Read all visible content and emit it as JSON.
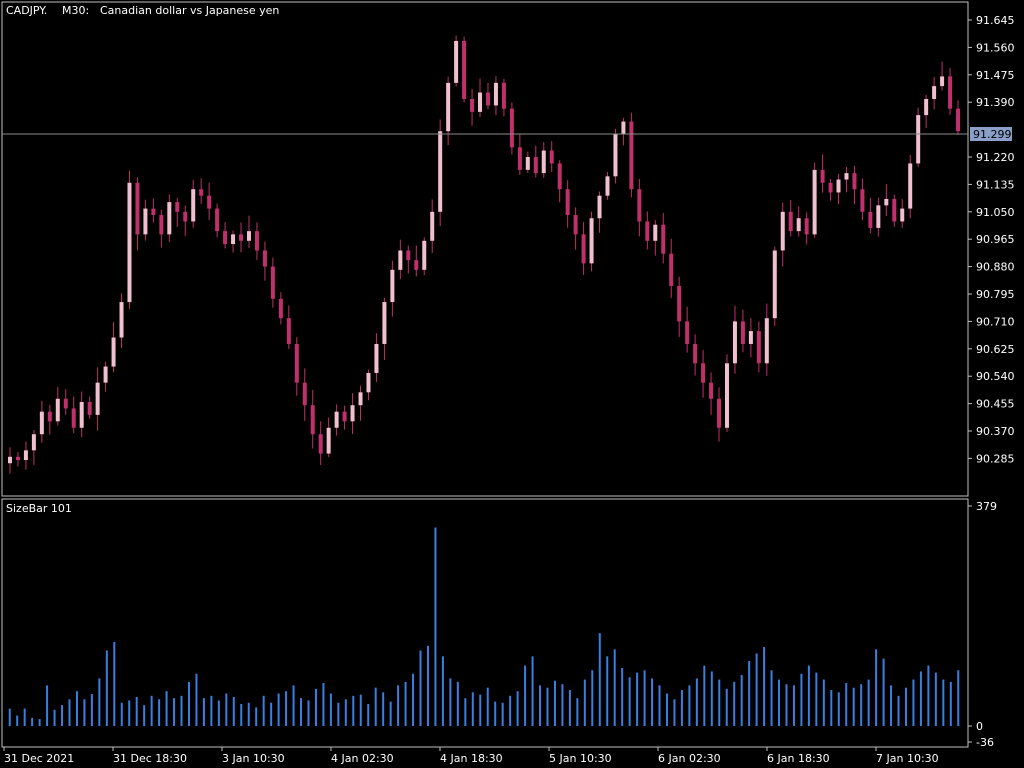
{
  "header": {
    "symbol": "CADJPY.",
    "timeframe": "M30:",
    "description": "Canadian dollar vs Japanese yen"
  },
  "indicator": {
    "label": "SizeBar 101"
  },
  "current_price": "91.299",
  "colors": {
    "background": "#000000",
    "frame": "#c0c0c0",
    "bull_candle": "#f0c0d0",
    "bear_candle": "#c0306a",
    "wick": "#c0306a",
    "volume_bar": "#3a7fe0",
    "price_line": "#8a8a8a",
    "price_tag": "#8aa0c8"
  },
  "chart_data": [
    {
      "type": "candlestick",
      "title": "CADJPY., M30:  Canadian dollar vs Japanese yen",
      "y_ticks": [
        "91.645",
        "91.560",
        "91.475",
        "91.390",
        "91.299",
        "91.220",
        "91.135",
        "91.050",
        "90.965",
        "90.880",
        "90.795",
        "90.710",
        "90.625",
        "90.540",
        "90.455",
        "90.370",
        "90.285"
      ],
      "ylim": [
        90.22,
        91.68
      ],
      "x_ticks": [
        "31 Dec 2021",
        "31 Dec 18:30",
        "3 Jan 10:30",
        "4 Jan 02:30",
        "4 Jan 18:30",
        "5 Jan 10:30",
        "6 Jan 02:30",
        "6 Jan 18:30",
        "7 Jan 10:30"
      ],
      "close_path": [
        90.29,
        90.28,
        90.31,
        90.36,
        90.43,
        90.4,
        90.47,
        90.44,
        90.38,
        90.46,
        90.42,
        90.52,
        90.57,
        90.66,
        90.77,
        91.14,
        90.98,
        91.06,
        91.04,
        90.98,
        91.08,
        91.05,
        91.02,
        91.12,
        91.1,
        91.06,
        90.99,
        90.95,
        90.98,
        90.96,
        90.99,
        90.93,
        90.88,
        90.78,
        90.72,
        90.64,
        90.52,
        90.45,
        90.36,
        90.3,
        90.38,
        90.43,
        90.4,
        90.45,
        90.49,
        90.55,
        90.64,
        90.77,
        90.87,
        90.93,
        90.9,
        90.87,
        90.96,
        91.05,
        91.3,
        91.45,
        91.58,
        91.4,
        91.36,
        91.42,
        91.38,
        91.45,
        91.37,
        91.25,
        91.18,
        91.22,
        91.17,
        91.24,
        91.2,
        91.12,
        91.04,
        90.98,
        90.89,
        91.03,
        91.1,
        91.16,
        91.29,
        91.33,
        91.12,
        91.02,
        90.96,
        91.01,
        90.92,
        90.82,
        90.71,
        90.64,
        90.58,
        90.52,
        90.47,
        90.38,
        90.58,
        90.71,
        90.64,
        90.68,
        90.58,
        90.72,
        90.93,
        91.05,
        90.99,
        91.03,
        90.98,
        91.18,
        91.14,
        91.11,
        91.15,
        91.17,
        91.12,
        91.05,
        91.0,
        91.07,
        91.09,
        91.02,
        91.06,
        91.2,
        91.35,
        91.4,
        91.44,
        91.47,
        91.37,
        91.3
      ],
      "note": "Approximate closing path across ~120 sampled M30 candles"
    },
    {
      "type": "bar",
      "title": "SizeBar 101",
      "y_ticks": [
        "379",
        "0",
        "-36"
      ],
      "ylim": [
        -36,
        379
      ],
      "note": "Per-candle size histogram; values approximate",
      "values": [
        30,
        18,
        30,
        14,
        12,
        70,
        28,
        36,
        46,
        60,
        46,
        55,
        82,
        130,
        145,
        40,
        44,
        50,
        36,
        52,
        46,
        60,
        48,
        52,
        76,
        90,
        48,
        52,
        44,
        56,
        50,
        38,
        40,
        32,
        52,
        40,
        56,
        60,
        70,
        48,
        44,
        64,
        74,
        56,
        40,
        46,
        52,
        54,
        38,
        66,
        58,
        42,
        70,
        76,
        90,
        130,
        138,
        342,
        120,
        82,
        76,
        48,
        58,
        54,
        66,
        42,
        40,
        52,
        60,
        104,
        120,
        70,
        66,
        78,
        72,
        62,
        48,
        80,
        96,
        160,
        120,
        132,
        100,
        84,
        92,
        96,
        82,
        70,
        56,
        46,
        62,
        70,
        82,
        104,
        94,
        80,
        64,
        76,
        88,
        112,
        125,
        136,
        96,
        80,
        72,
        70,
        90,
        104,
        92,
        80,
        62,
        58,
        74,
        66,
        72,
        80,
        132,
        116,
        70,
        52,
        66,
        80,
        94,
        104,
        92,
        80,
        76,
        96
      ]
    }
  ]
}
